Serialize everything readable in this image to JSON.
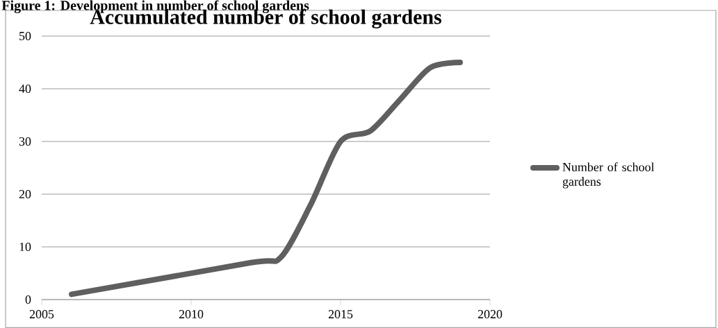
{
  "chart_data": {
    "type": "line",
    "title": "Accumulated number of school gardens",
    "annotations": [
      "Figure 1: Development in number of school gardens"
    ],
    "x": [
      2006,
      2012,
      2013,
      2014,
      2015,
      2016,
      2017,
      2018,
      2019
    ],
    "series": [
      {
        "name": "Number of school gardens",
        "color": "#5f5f5f",
        "values": [
          1,
          7,
          8,
          18,
          30,
          32,
          38,
          44,
          45
        ]
      }
    ],
    "xlim": [
      2005,
      2020
    ],
    "xticks": [
      2005,
      2010,
      2015,
      2020
    ],
    "ylim": [
      0,
      50
    ],
    "yticks": [
      0,
      10,
      20,
      30,
      40,
      50
    ],
    "grid": "y",
    "legend": "right",
    "marker": "none"
  }
}
